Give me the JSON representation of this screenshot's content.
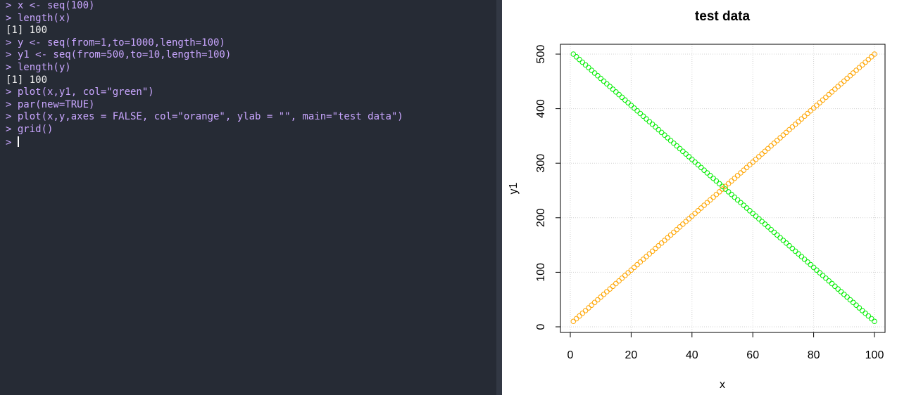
{
  "console": {
    "lines": [
      {
        "kind": "cmd",
        "text": "> x <- seq(100)"
      },
      {
        "kind": "cmd",
        "text": "> length(x)"
      },
      {
        "kind": "out",
        "text": "[1] 100"
      },
      {
        "kind": "cmd",
        "text": "> y <- seq(from=1,to=1000,length=100)"
      },
      {
        "kind": "cmd",
        "text": "> y1 <- seq(from=500,to=10,length=100)"
      },
      {
        "kind": "cmd",
        "text": "> length(y)"
      },
      {
        "kind": "out",
        "text": "[1] 100"
      },
      {
        "kind": "cmd",
        "text": "> plot(x,y1, col=\"green\")"
      },
      {
        "kind": "cmd",
        "text": "> par(new=TRUE)"
      },
      {
        "kind": "cmd",
        "text": "> plot(x,y,axes = FALSE, col=\"orange\", ylab = \"\", main=\"test data\")"
      },
      {
        "kind": "cmd",
        "text": "> grid()"
      }
    ],
    "prompt": "> ",
    "colors": {
      "background": "#262b35",
      "command": "#c9a6ff",
      "output": "#f0f0f0"
    }
  },
  "chart_data": {
    "type": "scatter",
    "title": "test data",
    "xlabel": "x",
    "ylabel": "y1",
    "xlim": [
      1,
      100
    ],
    "ylim": [
      10,
      500
    ],
    "xticks": [
      0,
      20,
      40,
      60,
      80,
      100
    ],
    "yticks": [
      0,
      100,
      200,
      300,
      400,
      500
    ],
    "grid": true,
    "marker": "open-circle",
    "series": [
      {
        "color": "#00ee00",
        "x_from": 1,
        "x_to": 100,
        "y_from": 500,
        "y_to": 10,
        "n": 100
      },
      {
        "color": "#ffa500",
        "x_from": 1,
        "x_to": 100,
        "y_from": 10,
        "y_to": 500,
        "n": 100
      }
    ]
  }
}
